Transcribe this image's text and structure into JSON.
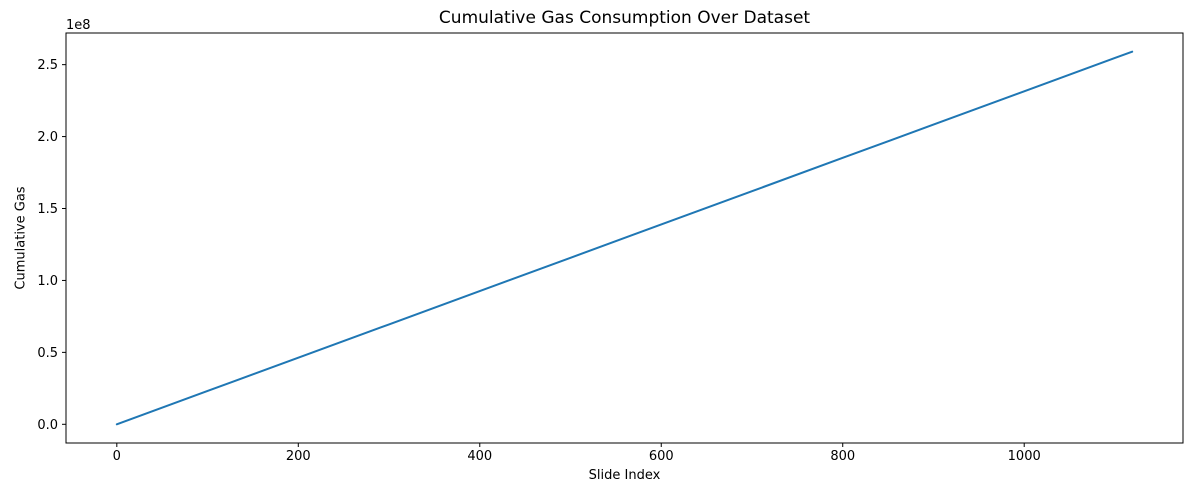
{
  "chart_data": {
    "type": "line",
    "title": "Cumulative Gas Consumption Over Dataset",
    "xlabel": "Slide Index",
    "ylabel": "Cumulative Gas",
    "y_offset_text": "1e8",
    "grid": false,
    "legend": false,
    "xlim": [
      -56,
      1175
    ],
    "ylim": [
      -13000000,
      272000000
    ],
    "x_ticks": {
      "values": [
        0,
        200,
        400,
        600,
        800,
        1000
      ],
      "labels": [
        "0",
        "200",
        "400",
        "600",
        "800",
        "1000"
      ]
    },
    "y_ticks": {
      "values": [
        0,
        50000000,
        100000000,
        150000000,
        200000000,
        250000000
      ],
      "labels": [
        "0.0",
        "0.5",
        "1.0",
        "1.5",
        "2.0",
        "2.5"
      ]
    },
    "series": [
      {
        "name": "cumulative_gas",
        "color": "#1f77b4",
        "line_width": 2,
        "x": [
          0,
          100,
          200,
          300,
          400,
          500,
          600,
          700,
          800,
          900,
          1000,
          1100,
          1119
        ],
        "y": [
          0,
          23150000,
          46300000,
          69450000,
          92600000,
          115750000,
          138900000,
          162050000,
          185200000,
          208350000,
          231500000,
          254650000,
          259000000
        ]
      }
    ]
  }
}
